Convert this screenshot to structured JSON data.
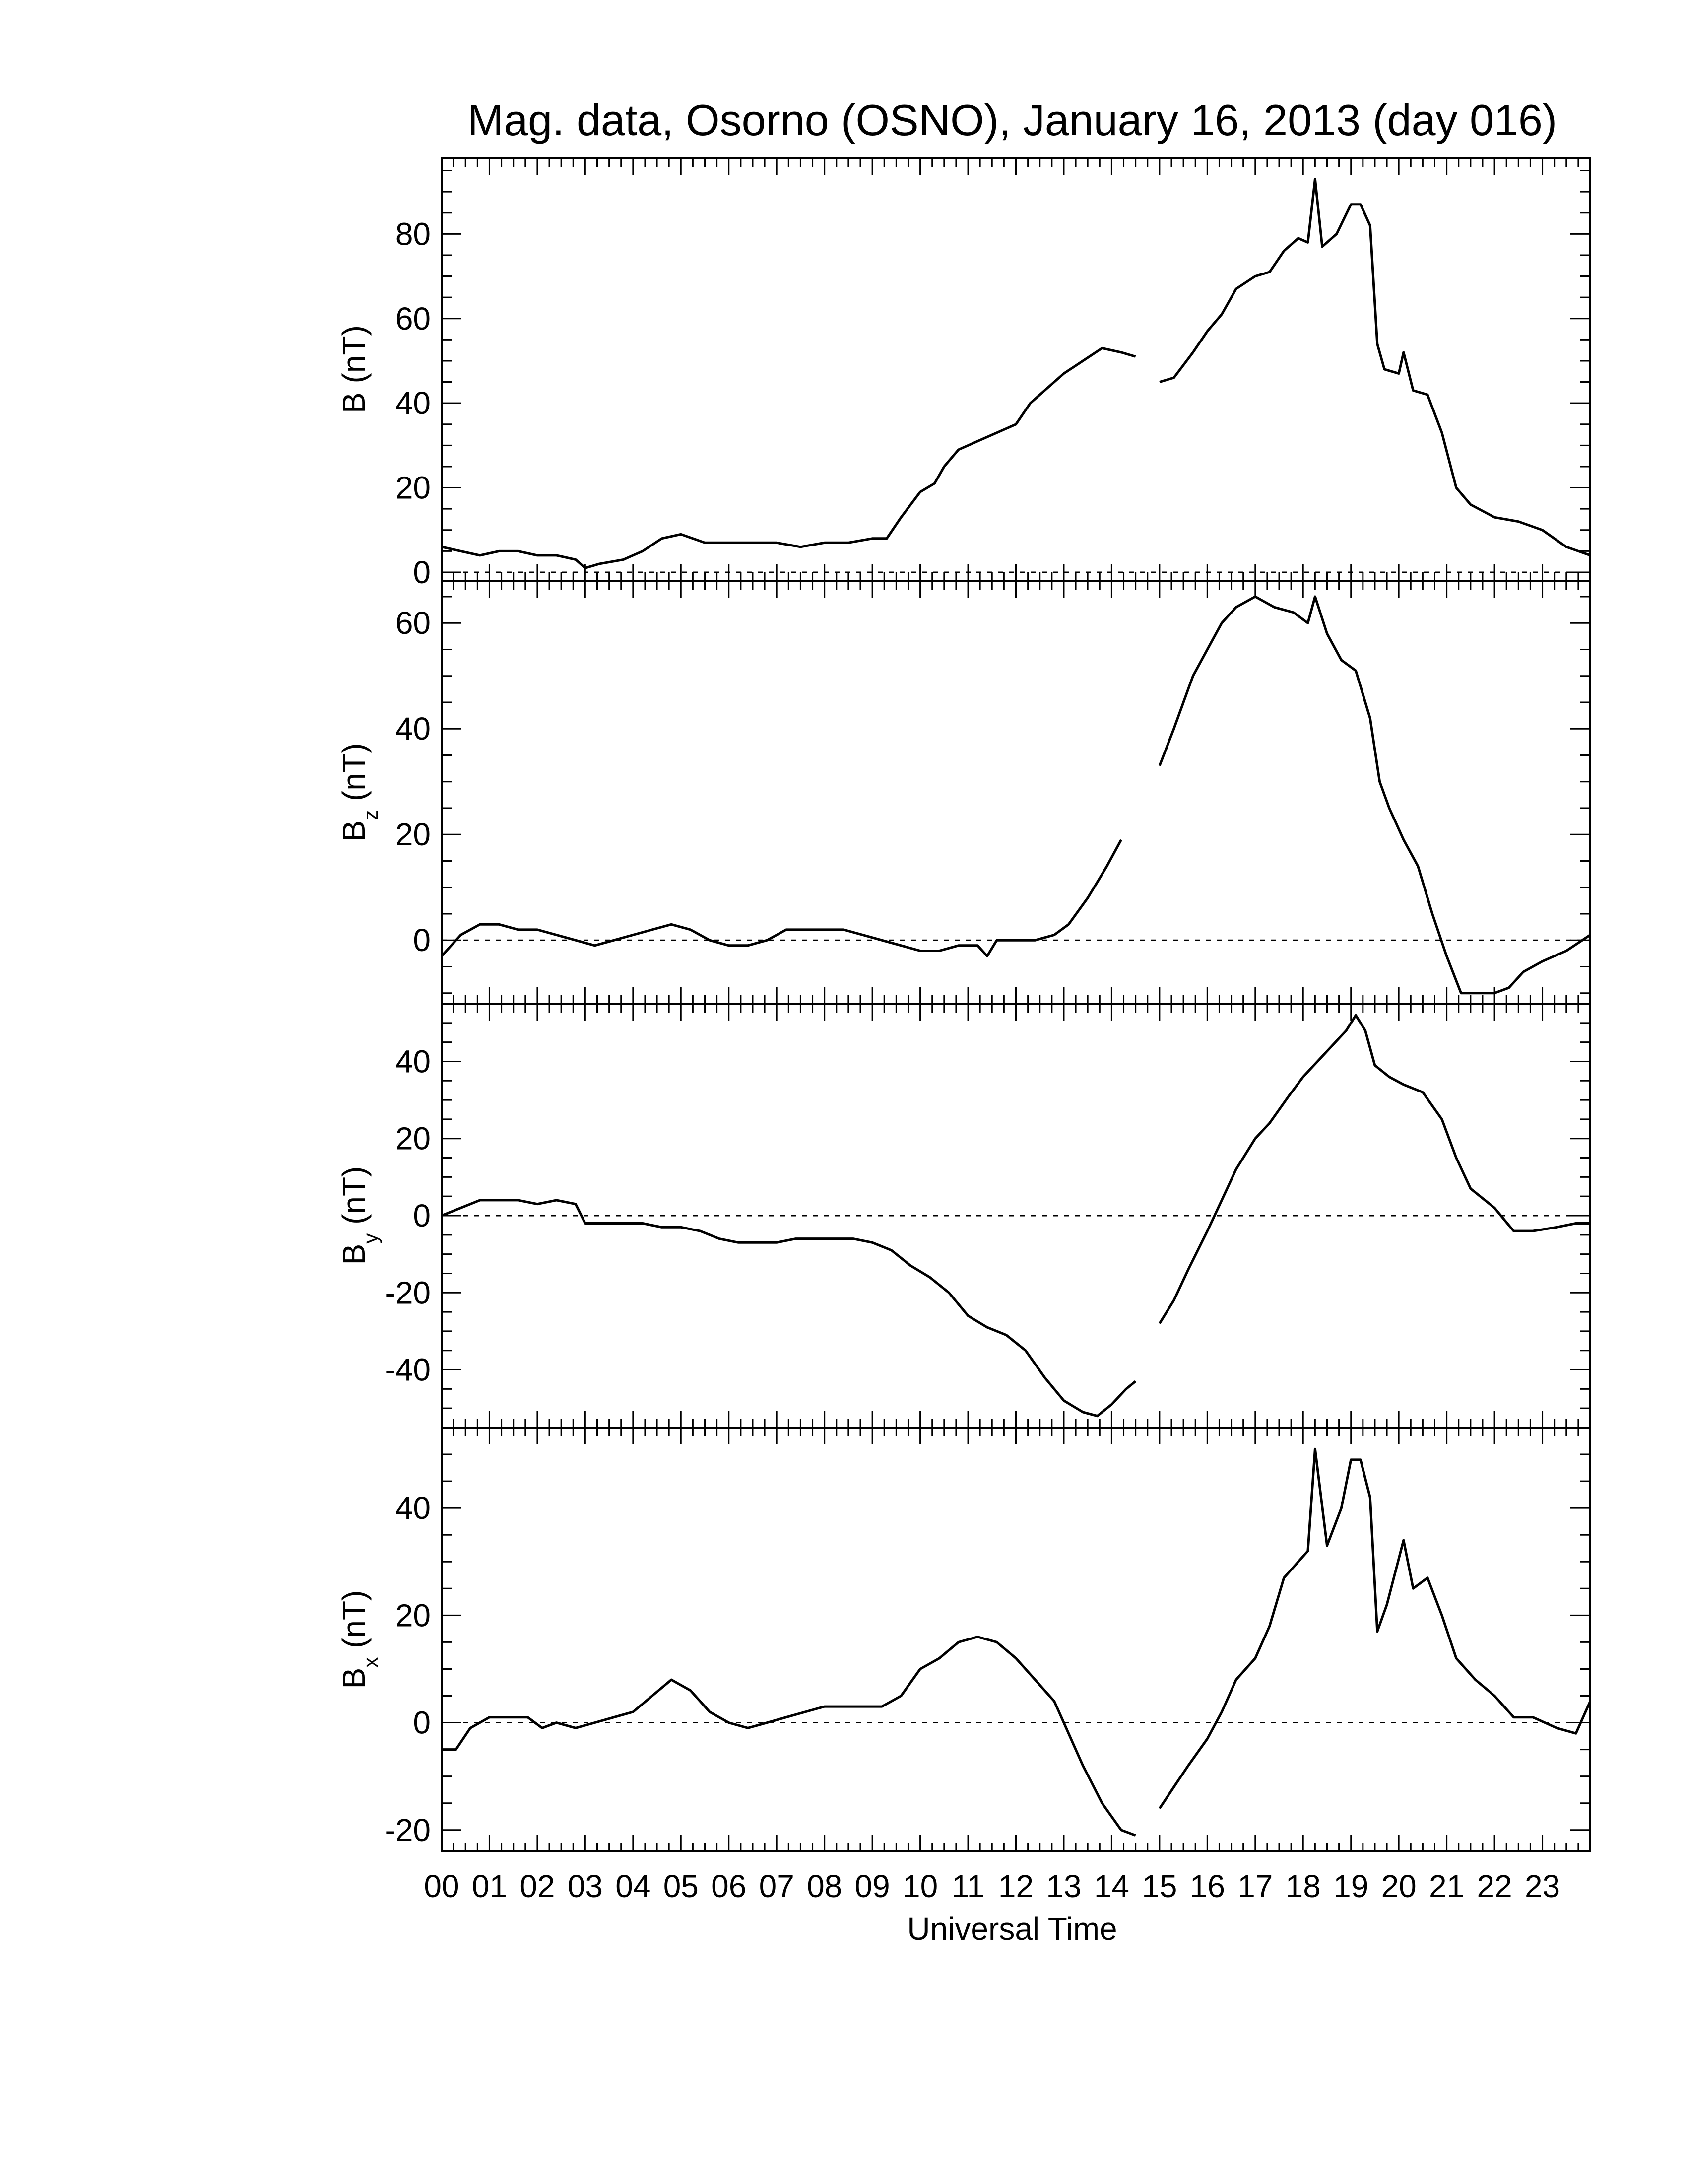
{
  "chart_data": {
    "type": "line",
    "title": "Mag. data, Osorno (OSNO), January 16, 2013 (day 016)",
    "xlabel": "Universal Time",
    "xlim": [
      0,
      24
    ],
    "x_tick_labels": [
      "00",
      "01",
      "02",
      "03",
      "04",
      "05",
      "06",
      "07",
      "08",
      "09",
      "10",
      "11",
      "12",
      "13",
      "14",
      "15",
      "16",
      "17",
      "18",
      "19",
      "20",
      "21",
      "22",
      "23"
    ],
    "panels": [
      {
        "id": "B",
        "ylabel_main": "B",
        "ylabel_sub": "",
        "ylabel_unit": "(nT)",
        "ylim": [
          -2,
          98
        ],
        "yticks": [
          0,
          20,
          40,
          60,
          80
        ],
        "segments": [
          [
            [
              0,
              6
            ],
            [
              0.4,
              5
            ],
            [
              0.8,
              4
            ],
            [
              1.2,
              5
            ],
            [
              1.6,
              5
            ],
            [
              2,
              4
            ],
            [
              2.4,
              4
            ],
            [
              2.8,
              3
            ],
            [
              3,
              1
            ],
            [
              3.3,
              2
            ],
            [
              3.8,
              3
            ],
            [
              4.2,
              5
            ],
            [
              4.6,
              8
            ],
            [
              5,
              9
            ],
            [
              5.5,
              7
            ],
            [
              6,
              7
            ],
            [
              6.5,
              7
            ],
            [
              7,
              7
            ],
            [
              7.5,
              6
            ],
            [
              8,
              7
            ],
            [
              8.5,
              7
            ],
            [
              9,
              8
            ],
            [
              9.3,
              8
            ],
            [
              9.6,
              13
            ],
            [
              10,
              19
            ],
            [
              10.3,
              21
            ],
            [
              10.5,
              25
            ],
            [
              10.8,
              29
            ],
            [
              11.2,
              31
            ],
            [
              11.6,
              33
            ],
            [
              12,
              35
            ],
            [
              12.3,
              40
            ],
            [
              12.6,
              43
            ],
            [
              13,
              47
            ],
            [
              13.4,
              50
            ],
            [
              13.8,
              53
            ],
            [
              14.2,
              52
            ],
            [
              14.5,
              51
            ]
          ],
          [
            [
              15,
              45
            ],
            [
              15.3,
              46
            ],
            [
              15.7,
              52
            ],
            [
              16,
              57
            ],
            [
              16.3,
              61
            ],
            [
              16.6,
              67
            ],
            [
              17,
              70
            ],
            [
              17.3,
              71
            ],
            [
              17.6,
              76
            ],
            [
              17.9,
              79
            ],
            [
              18.1,
              78
            ],
            [
              18.25,
              93
            ],
            [
              18.4,
              77
            ],
            [
              18.7,
              80
            ],
            [
              19,
              87
            ],
            [
              19.2,
              87
            ],
            [
              19.4,
              82
            ],
            [
              19.55,
              54
            ],
            [
              19.7,
              48
            ],
            [
              20,
              47
            ],
            [
              20.1,
              52
            ],
            [
              20.3,
              43
            ],
            [
              20.6,
              42
            ],
            [
              20.9,
              33
            ],
            [
              21.2,
              20
            ],
            [
              21.5,
              16
            ],
            [
              22,
              13
            ],
            [
              22.5,
              12
            ],
            [
              23,
              10
            ],
            [
              23.5,
              6
            ],
            [
              24,
              4
            ]
          ]
        ]
      },
      {
        "id": "Bz",
        "ylabel_main": "B",
        "ylabel_sub": "z",
        "ylabel_unit": "(nT)",
        "ylim": [
          -12,
          68
        ],
        "yticks": [
          0,
          20,
          40,
          60
        ],
        "segments": [
          [
            [
              0,
              -3
            ],
            [
              0.4,
              1
            ],
            [
              0.8,
              3
            ],
            [
              1.2,
              3
            ],
            [
              1.6,
              2
            ],
            [
              2,
              2
            ],
            [
              2.4,
              1
            ],
            [
              2.8,
              0
            ],
            [
              3.2,
              -1
            ],
            [
              3.6,
              0
            ],
            [
              4,
              1
            ],
            [
              4.4,
              2
            ],
            [
              4.8,
              3
            ],
            [
              5.2,
              2
            ],
            [
              5.6,
              0
            ],
            [
              6,
              -1
            ],
            [
              6.4,
              -1
            ],
            [
              6.8,
              0
            ],
            [
              7.2,
              2
            ],
            [
              7.6,
              2
            ],
            [
              8,
              2
            ],
            [
              8.4,
              2
            ],
            [
              8.8,
              1
            ],
            [
              9.2,
              0
            ],
            [
              9.6,
              -1
            ],
            [
              10,
              -2
            ],
            [
              10.4,
              -2
            ],
            [
              10.8,
              -1
            ],
            [
              11.2,
              -1
            ],
            [
              11.4,
              -3
            ],
            [
              11.6,
              0
            ],
            [
              12,
              0
            ],
            [
              12.4,
              0
            ],
            [
              12.8,
              1
            ],
            [
              13.1,
              3
            ],
            [
              13.5,
              8
            ],
            [
              13.9,
              14
            ],
            [
              14.2,
              19
            ]
          ],
          [
            [
              15,
              33
            ],
            [
              15.3,
              40
            ],
            [
              15.7,
              50
            ],
            [
              16,
              55
            ],
            [
              16.3,
              60
            ],
            [
              16.6,
              63
            ],
            [
              17,
              65
            ],
            [
              17.4,
              63
            ],
            [
              17.8,
              62
            ],
            [
              18.1,
              60
            ],
            [
              18.25,
              65
            ],
            [
              18.5,
              58
            ],
            [
              18.8,
              53
            ],
            [
              19.1,
              51
            ],
            [
              19.4,
              42
            ],
            [
              19.6,
              30
            ],
            [
              19.8,
              25
            ],
            [
              20.1,
              19
            ],
            [
              20.4,
              14
            ],
            [
              20.7,
              5
            ],
            [
              21,
              -3
            ],
            [
              21.3,
              -10
            ],
            [
              21.6,
              -10
            ],
            [
              22,
              -10
            ],
            [
              22.3,
              -9
            ],
            [
              22.6,
              -6
            ],
            [
              23,
              -4
            ],
            [
              23.5,
              -2
            ],
            [
              24,
              1
            ]
          ]
        ]
      },
      {
        "id": "By",
        "ylabel_main": "B",
        "ylabel_sub": "y",
        "ylabel_unit": "(nT)",
        "ylim": [
          -55,
          55
        ],
        "yticks": [
          -40,
          -20,
          0,
          20,
          40
        ],
        "segments": [
          [
            [
              0,
              0
            ],
            [
              0.4,
              2
            ],
            [
              0.8,
              4
            ],
            [
              1.2,
              4
            ],
            [
              1.6,
              4
            ],
            [
              2,
              3
            ],
            [
              2.4,
              4
            ],
            [
              2.8,
              3
            ],
            [
              3,
              -2
            ],
            [
              3.4,
              -2
            ],
            [
              3.8,
              -2
            ],
            [
              4.2,
              -2
            ],
            [
              4.6,
              -3
            ],
            [
              5,
              -3
            ],
            [
              5.4,
              -4
            ],
            [
              5.8,
              -6
            ],
            [
              6.2,
              -7
            ],
            [
              6.6,
              -7
            ],
            [
              7,
              -7
            ],
            [
              7.4,
              -6
            ],
            [
              7.8,
              -6
            ],
            [
              8.2,
              -6
            ],
            [
              8.6,
              -6
            ],
            [
              9,
              -7
            ],
            [
              9.4,
              -9
            ],
            [
              9.8,
              -13
            ],
            [
              10.2,
              -16
            ],
            [
              10.6,
              -20
            ],
            [
              11,
              -26
            ],
            [
              11.4,
              -29
            ],
            [
              11.8,
              -31
            ],
            [
              12.2,
              -35
            ],
            [
              12.6,
              -42
            ],
            [
              13,
              -48
            ],
            [
              13.4,
              -51
            ],
            [
              13.7,
              -52
            ],
            [
              14,
              -49
            ],
            [
              14.3,
              -45
            ],
            [
              14.5,
              -43
            ]
          ],
          [
            [
              15,
              -28
            ],
            [
              15.3,
              -22
            ],
            [
              15.6,
              -14
            ],
            [
              16,
              -4
            ],
            [
              16.3,
              4
            ],
            [
              16.6,
              12
            ],
            [
              17,
              20
            ],
            [
              17.3,
              24
            ],
            [
              17.7,
              31
            ],
            [
              18,
              36
            ],
            [
              18.3,
              40
            ],
            [
              18.6,
              44
            ],
            [
              18.9,
              48
            ],
            [
              19.1,
              52
            ],
            [
              19.3,
              48
            ],
            [
              19.5,
              39
            ],
            [
              19.8,
              36
            ],
            [
              20.1,
              34
            ],
            [
              20.5,
              32
            ],
            [
              20.9,
              25
            ],
            [
              21.2,
              15
            ],
            [
              21.5,
              7
            ],
            [
              22,
              2
            ],
            [
              22.4,
              -4
            ],
            [
              22.8,
              -4
            ],
            [
              23.3,
              -3
            ],
            [
              23.7,
              -2
            ],
            [
              24,
              -2
            ]
          ]
        ]
      },
      {
        "id": "Bx",
        "ylabel_main": "B",
        "ylabel_sub": "x",
        "ylabel_unit": "(nT)",
        "ylim": [
          -24,
          55
        ],
        "yticks": [
          -20,
          0,
          20,
          40
        ],
        "segments": [
          [
            [
              0,
              -5
            ],
            [
              0.3,
              -5
            ],
            [
              0.6,
              -1
            ],
            [
              1,
              1
            ],
            [
              1.4,
              1
            ],
            [
              1.8,
              1
            ],
            [
              2.1,
              -1
            ],
            [
              2.4,
              0
            ],
            [
              2.8,
              -1
            ],
            [
              3.2,
              0
            ],
            [
              3.6,
              1
            ],
            [
              4,
              2
            ],
            [
              4.4,
              5
            ],
            [
              4.8,
              8
            ],
            [
              5.2,
              6
            ],
            [
              5.6,
              2
            ],
            [
              6,
              0
            ],
            [
              6.4,
              -1
            ],
            [
              6.8,
              0
            ],
            [
              7.2,
              1
            ],
            [
              7.6,
              2
            ],
            [
              8,
              3
            ],
            [
              8.4,
              3
            ],
            [
              8.8,
              3
            ],
            [
              9.2,
              3
            ],
            [
              9.6,
              5
            ],
            [
              10,
              10
            ],
            [
              10.4,
              12
            ],
            [
              10.8,
              15
            ],
            [
              11.2,
              16
            ],
            [
              11.6,
              15
            ],
            [
              12,
              12
            ],
            [
              12.4,
              8
            ],
            [
              12.8,
              4
            ],
            [
              13.1,
              -2
            ],
            [
              13.4,
              -8
            ],
            [
              13.8,
              -15
            ],
            [
              14.2,
              -20
            ],
            [
              14.5,
              -21
            ]
          ],
          [
            [
              15,
              -16
            ],
            [
              15.3,
              -12
            ],
            [
              15.6,
              -8
            ],
            [
              16,
              -3
            ],
            [
              16.3,
              2
            ],
            [
              16.6,
              8
            ],
            [
              17,
              12
            ],
            [
              17.3,
              18
            ],
            [
              17.6,
              27
            ],
            [
              17.9,
              30
            ],
            [
              18.1,
              32
            ],
            [
              18.25,
              51
            ],
            [
              18.5,
              33
            ],
            [
              18.8,
              40
            ],
            [
              19,
              49
            ],
            [
              19.2,
              49
            ],
            [
              19.4,
              42
            ],
            [
              19.55,
              17
            ],
            [
              19.75,
              22
            ],
            [
              20.1,
              34
            ],
            [
              20.3,
              25
            ],
            [
              20.6,
              27
            ],
            [
              20.9,
              20
            ],
            [
              21.2,
              12
            ],
            [
              21.6,
              8
            ],
            [
              22,
              5
            ],
            [
              22.4,
              1
            ],
            [
              22.8,
              1
            ],
            [
              23.3,
              -1
            ],
            [
              23.7,
              -2
            ],
            [
              24,
              4
            ]
          ]
        ]
      }
    ]
  }
}
